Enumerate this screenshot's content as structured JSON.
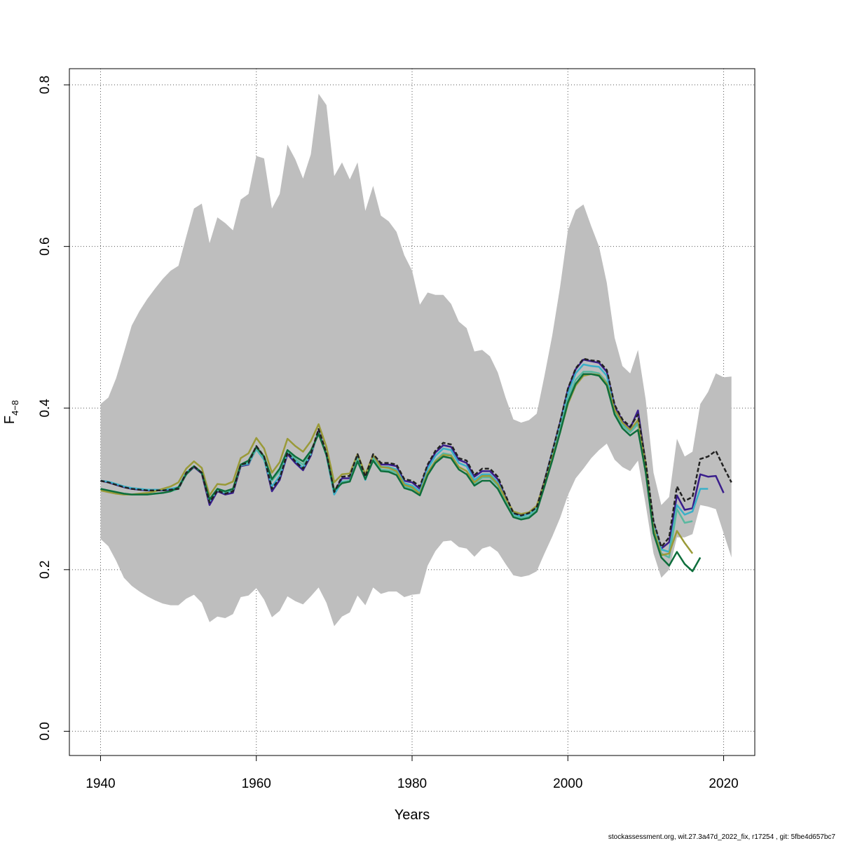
{
  "chart_data": {
    "type": "line",
    "xlabel": "Years",
    "ylabel_main": "F",
    "ylabel_sub": "4−8",
    "xlim": [
      1936,
      2024
    ],
    "ylim": [
      -0.03,
      0.82
    ],
    "x_ticks": [
      1940,
      1960,
      1980,
      2000,
      2020
    ],
    "y_ticks": [
      0.0,
      0.2,
      0.4,
      0.6,
      0.8
    ],
    "y_tick_labels": [
      "0.0",
      "0.2",
      "0.4",
      "0.6",
      "0.8"
    ],
    "grid": true,
    "footer": "stockassessment.org, wit.27.3a47d_2022_fix, r17254 , git: 5fbe4d657bc7",
    "band_color": "#bebebe",
    "band": {
      "x": [
        1940,
        1941,
        1942,
        1943,
        1944,
        1945,
        1946,
        1947,
        1948,
        1949,
        1950,
        1951,
        1952,
        1953,
        1954,
        1955,
        1956,
        1957,
        1958,
        1959,
        1960,
        1961,
        1962,
        1963,
        1964,
        1965,
        1966,
        1967,
        1968,
        1969,
        1970,
        1971,
        1972,
        1973,
        1974,
        1975,
        1976,
        1977,
        1978,
        1979,
        1980,
        1981,
        1982,
        1983,
        1984,
        1985,
        1986,
        1987,
        1988,
        1989,
        1990,
        1991,
        1992,
        1993,
        1994,
        1995,
        1996,
        1997,
        1998,
        1999,
        2000,
        2001,
        2002,
        2003,
        2004,
        2005,
        2006,
        2007,
        2008,
        2009,
        2010,
        2011,
        2012,
        2013,
        2014,
        2015,
        2016,
        2017,
        2018,
        2019,
        2020,
        2021
      ],
      "upper": [
        0.405,
        0.413,
        0.437,
        0.469,
        0.502,
        0.52,
        0.535,
        0.548,
        0.56,
        0.57,
        0.576,
        0.612,
        0.647,
        0.653,
        0.604,
        0.636,
        0.629,
        0.62,
        0.658,
        0.665,
        0.712,
        0.709,
        0.647,
        0.665,
        0.726,
        0.708,
        0.684,
        0.714,
        0.789,
        0.775,
        0.687,
        0.704,
        0.683,
        0.704,
        0.644,
        0.675,
        0.638,
        0.631,
        0.618,
        0.589,
        0.57,
        0.528,
        0.543,
        0.54,
        0.54,
        0.529,
        0.507,
        0.499,
        0.47,
        0.472,
        0.464,
        0.444,
        0.413,
        0.386,
        0.382,
        0.385,
        0.393,
        0.44,
        0.49,
        0.55,
        0.62,
        0.645,
        0.652,
        0.625,
        0.6,
        0.555,
        0.487,
        0.452,
        0.443,
        0.472,
        0.41,
        0.32,
        0.28,
        0.29,
        0.362,
        0.34,
        0.346,
        0.405,
        0.42,
        0.443,
        0.438,
        0.439
      ],
      "lower": [
        0.238,
        0.229,
        0.211,
        0.19,
        0.18,
        0.173,
        0.167,
        0.162,
        0.158,
        0.156,
        0.156,
        0.164,
        0.169,
        0.159,
        0.135,
        0.142,
        0.14,
        0.145,
        0.166,
        0.168,
        0.177,
        0.163,
        0.141,
        0.149,
        0.167,
        0.161,
        0.157,
        0.167,
        0.178,
        0.159,
        0.13,
        0.142,
        0.147,
        0.168,
        0.156,
        0.178,
        0.17,
        0.173,
        0.173,
        0.166,
        0.169,
        0.17,
        0.205,
        0.223,
        0.235,
        0.236,
        0.228,
        0.226,
        0.216,
        0.226,
        0.229,
        0.222,
        0.207,
        0.193,
        0.191,
        0.193,
        0.198,
        0.22,
        0.241,
        0.264,
        0.292,
        0.313,
        0.325,
        0.338,
        0.348,
        0.356,
        0.336,
        0.327,
        0.322,
        0.335,
        0.28,
        0.22,
        0.19,
        0.2,
        0.24,
        0.24,
        0.244,
        0.28,
        0.278,
        0.275,
        0.245,
        0.215
      ]
    },
    "series": [
      {
        "color": "#222222",
        "dashed": true,
        "start": 1940,
        "values": [
          0.31,
          0.308,
          0.305,
          0.302,
          0.3,
          0.299,
          0.298,
          0.298,
          0.298,
          0.299,
          0.3,
          0.32,
          0.328,
          0.32,
          0.283,
          0.298,
          0.294,
          0.297,
          0.33,
          0.332,
          0.353,
          0.34,
          0.3,
          0.313,
          0.345,
          0.334,
          0.325,
          0.343,
          0.374,
          0.344,
          0.296,
          0.315,
          0.316,
          0.343,
          0.315,
          0.343,
          0.332,
          0.332,
          0.33,
          0.312,
          0.31,
          0.303,
          0.33,
          0.347,
          0.357,
          0.355,
          0.338,
          0.335,
          0.317,
          0.325,
          0.325,
          0.315,
          0.292,
          0.27,
          0.267,
          0.27,
          0.277,
          0.31,
          0.346,
          0.383,
          0.424,
          0.449,
          0.461,
          0.459,
          0.458,
          0.447,
          0.404,
          0.386,
          0.377,
          0.392,
          0.333,
          0.26,
          0.228,
          0.24,
          0.303,
          0.285,
          0.29,
          0.337,
          0.34,
          0.347,
          0.327,
          0.308
        ]
      },
      {
        "color": "#3a1e8c",
        "dashed": false,
        "start": 1940,
        "values": [
          0.31,
          0.308,
          0.305,
          0.302,
          0.3,
          0.299,
          0.298,
          0.298,
          0.298,
          0.299,
          0.3,
          0.318,
          0.327,
          0.319,
          0.28,
          0.297,
          0.293,
          0.295,
          0.328,
          0.33,
          0.351,
          0.338,
          0.297,
          0.311,
          0.343,
          0.332,
          0.323,
          0.341,
          0.372,
          0.342,
          0.295,
          0.313,
          0.313,
          0.341,
          0.313,
          0.341,
          0.33,
          0.33,
          0.328,
          0.31,
          0.308,
          0.3,
          0.328,
          0.345,
          0.354,
          0.352,
          0.336,
          0.332,
          0.315,
          0.322,
          0.322,
          0.312,
          0.29,
          0.27,
          0.267,
          0.27,
          0.277,
          0.31,
          0.345,
          0.382,
          0.423,
          0.448,
          0.46,
          0.458,
          0.456,
          0.445,
          0.402,
          0.384,
          0.375,
          0.397,
          0.33,
          0.258,
          0.226,
          0.234,
          0.292,
          0.274,
          0.276,
          0.318,
          0.315,
          0.316,
          0.295
        ]
      },
      {
        "color": "#3ab0c8",
        "dashed": false,
        "start": 1940,
        "values": [
          0.31,
          0.309,
          0.306,
          0.303,
          0.301,
          0.3,
          0.299,
          0.299,
          0.299,
          0.3,
          0.302,
          0.32,
          0.328,
          0.32,
          0.285,
          0.298,
          0.295,
          0.298,
          0.329,
          0.331,
          0.349,
          0.336,
          0.303,
          0.316,
          0.345,
          0.335,
          0.326,
          0.343,
          0.37,
          0.341,
          0.293,
          0.309,
          0.31,
          0.338,
          0.311,
          0.338,
          0.327,
          0.327,
          0.324,
          0.307,
          0.304,
          0.297,
          0.325,
          0.341,
          0.35,
          0.348,
          0.332,
          0.328,
          0.311,
          0.318,
          0.318,
          0.308,
          0.288,
          0.268,
          0.266,
          0.269,
          0.276,
          0.308,
          0.343,
          0.378,
          0.418,
          0.443,
          0.454,
          0.452,
          0.451,
          0.44,
          0.398,
          0.38,
          0.372,
          0.383,
          0.33,
          0.255,
          0.225,
          0.222,
          0.28,
          0.268,
          0.272,
          0.3,
          0.3
        ]
      },
      {
        "color": "#5ab8a0",
        "dashed": false,
        "start": 1940,
        "values": [
          0.3,
          0.298,
          0.296,
          0.294,
          0.293,
          0.293,
          0.293,
          0.294,
          0.295,
          0.297,
          0.3,
          0.318,
          0.328,
          0.32,
          0.287,
          0.298,
          0.296,
          0.299,
          0.329,
          0.333,
          0.35,
          0.338,
          0.31,
          0.322,
          0.347,
          0.337,
          0.33,
          0.345,
          0.369,
          0.343,
          0.298,
          0.308,
          0.31,
          0.337,
          0.313,
          0.337,
          0.324,
          0.323,
          0.32,
          0.303,
          0.3,
          0.294,
          0.32,
          0.335,
          0.344,
          0.342,
          0.327,
          0.322,
          0.306,
          0.314,
          0.314,
          0.304,
          0.285,
          0.267,
          0.264,
          0.266,
          0.274,
          0.306,
          0.34,
          0.375,
          0.412,
          0.435,
          0.445,
          0.445,
          0.443,
          0.432,
          0.395,
          0.378,
          0.37,
          0.38,
          0.33,
          0.255,
          0.22,
          0.215,
          0.275,
          0.258,
          0.26
        ]
      },
      {
        "color": "#9a9a38",
        "dashed": false,
        "start": 1940,
        "values": [
          0.298,
          0.296,
          0.294,
          0.293,
          0.293,
          0.294,
          0.295,
          0.297,
          0.3,
          0.303,
          0.308,
          0.325,
          0.334,
          0.326,
          0.292,
          0.306,
          0.305,
          0.309,
          0.338,
          0.344,
          0.363,
          0.35,
          0.32,
          0.333,
          0.362,
          0.353,
          0.346,
          0.359,
          0.38,
          0.352,
          0.308,
          0.318,
          0.319,
          0.343,
          0.318,
          0.342,
          0.327,
          0.326,
          0.322,
          0.305,
          0.302,
          0.294,
          0.32,
          0.334,
          0.342,
          0.341,
          0.327,
          0.322,
          0.308,
          0.316,
          0.316,
          0.306,
          0.288,
          0.272,
          0.269,
          0.271,
          0.279,
          0.308,
          0.338,
          0.37,
          0.405,
          0.428,
          0.44,
          0.442,
          0.441,
          0.43,
          0.398,
          0.382,
          0.373,
          0.385,
          0.33,
          0.25,
          0.218,
          0.22,
          0.248,
          0.233,
          0.22
        ]
      },
      {
        "color": "#0e6e3c",
        "dashed": false,
        "start": 1940,
        "values": [
          0.3,
          0.298,
          0.296,
          0.294,
          0.293,
          0.293,
          0.293,
          0.294,
          0.295,
          0.297,
          0.302,
          0.318,
          0.328,
          0.32,
          0.287,
          0.3,
          0.297,
          0.3,
          0.33,
          0.335,
          0.352,
          0.34,
          0.312,
          0.325,
          0.348,
          0.34,
          0.334,
          0.347,
          0.368,
          0.342,
          0.298,
          0.307,
          0.309,
          0.334,
          0.312,
          0.335,
          0.322,
          0.321,
          0.317,
          0.301,
          0.298,
          0.292,
          0.317,
          0.332,
          0.34,
          0.338,
          0.324,
          0.318,
          0.304,
          0.31,
          0.31,
          0.3,
          0.282,
          0.265,
          0.262,
          0.264,
          0.272,
          0.303,
          0.335,
          0.37,
          0.407,
          0.43,
          0.442,
          0.442,
          0.44,
          0.428,
          0.392,
          0.375,
          0.366,
          0.373,
          0.32,
          0.245,
          0.215,
          0.205,
          0.222,
          0.207,
          0.198,
          0.215
        ]
      }
    ]
  }
}
